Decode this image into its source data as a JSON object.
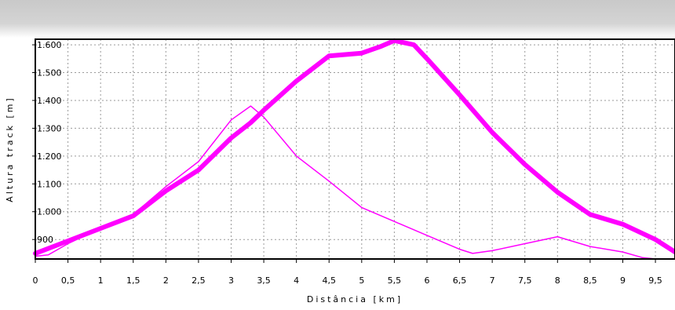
{
  "chart_data": {
    "type": "line",
    "xlabel": "Distância [km]",
    "ylabel": "Altura track [m]",
    "xlim": [
      0,
      9.8
    ],
    "ylim": [
      830,
      1620
    ],
    "x_ticks": [
      0,
      0.5,
      1,
      1.5,
      2,
      2.5,
      3,
      3.5,
      4,
      4.5,
      5,
      5.5,
      6,
      6.5,
      7,
      7.5,
      8,
      8.5,
      9,
      9.5
    ],
    "x_tick_labels": [
      "0",
      "0,5",
      "1",
      "1,5",
      "2",
      "2,5",
      "3",
      "3,5",
      "4",
      "4,5",
      "5",
      "5,5",
      "6",
      "6,5",
      "7",
      "7,5",
      "8",
      "8,5",
      "9",
      "9,5"
    ],
    "y_ticks": [
      900,
      1000,
      1100,
      1200,
      1300,
      1400,
      1500,
      1600
    ],
    "y_tick_labels": [
      "900",
      "1.000",
      "1.100",
      "1.200",
      "1.300",
      "1.400",
      "1.500",
      "1.600"
    ],
    "grid": true,
    "legend": "none",
    "series": [
      {
        "color": "#ff00ff",
        "line": "thick",
        "x": [
          0,
          0.5,
          1,
          1.5,
          2,
          2.5,
          3,
          3.3,
          3.5,
          4,
          4.5,
          5,
          5.3,
          5.5,
          5.8,
          6,
          6.5,
          7,
          7.5,
          8,
          8.5,
          9,
          9.5,
          9.8
        ],
        "y": [
          850,
          895,
          940,
          985,
          1075,
          1150,
          1265,
          1320,
          1365,
          1470,
          1560,
          1570,
          1595,
          1615,
          1600,
          1550,
          1420,
          1285,
          1170,
          1070,
          990,
          955,
          900,
          855
        ]
      },
      {
        "color": "#ff00ff",
        "line": "thin",
        "x": [
          0,
          0.2,
          0.5,
          1,
          1.5,
          2,
          2.5,
          3,
          3.3,
          3.5,
          4,
          4.5,
          5,
          5.5,
          6,
          6.5,
          6.7,
          7,
          7.5,
          8,
          8.5,
          9,
          9.3,
          9.5
        ],
        "y": [
          840,
          845,
          885,
          940,
          990,
          1090,
          1180,
          1330,
          1380,
          1340,
          1200,
          1110,
          1015,
          965,
          915,
          865,
          850,
          860,
          885,
          910,
          875,
          855,
          835,
          830
        ]
      }
    ]
  }
}
